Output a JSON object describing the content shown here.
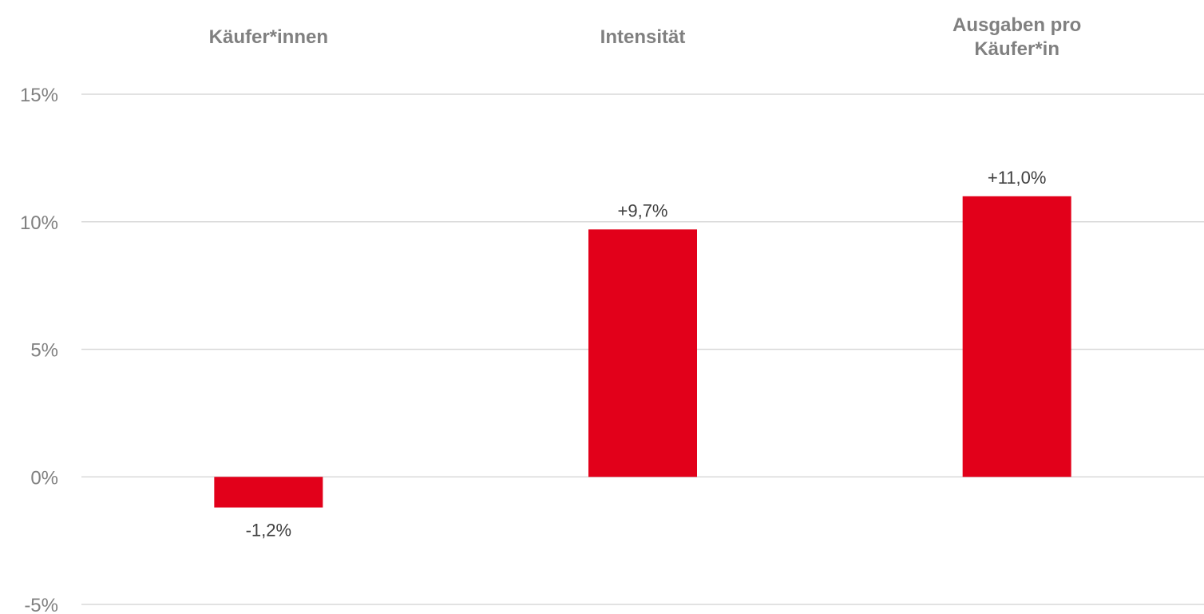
{
  "chart_data": {
    "type": "bar",
    "categories": [
      [
        "Käufer*innen"
      ],
      [
        "Intensität"
      ],
      [
        "Ausgaben pro",
        "Käufer*in"
      ]
    ],
    "values": [
      -1.2,
      9.7,
      11.0
    ],
    "data_labels": [
      "-1,2%",
      "+9,7%",
      "+11,0%"
    ],
    "y_ticks": [
      {
        "value": 15,
        "label": "15%"
      },
      {
        "value": 10,
        "label": "10%"
      },
      {
        "value": 5,
        "label": "5%"
      },
      {
        "value": 0,
        "label": "0%"
      },
      {
        "value": -5,
        "label": "-5%"
      }
    ],
    "ylim": [
      -5,
      15
    ],
    "grid": true,
    "bar_color": "#e2001a",
    "category_label_position": "top",
    "title": "",
    "xlabel": "",
    "ylabel": ""
  }
}
